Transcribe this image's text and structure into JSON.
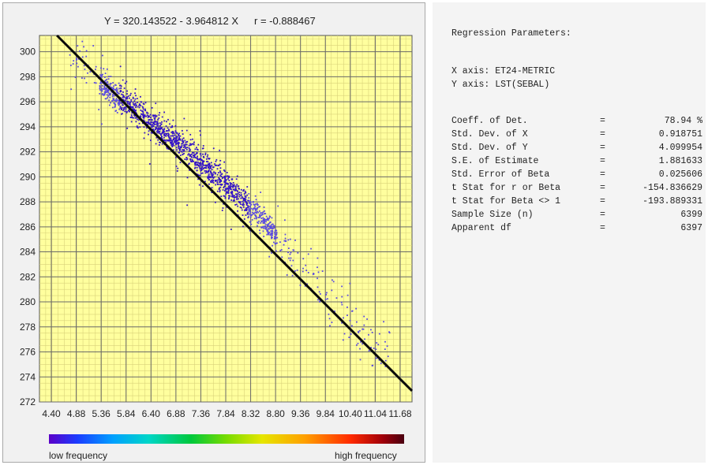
{
  "chart_data": {
    "type": "scatter",
    "title": "Y = 320.143522 - 3.964812 X",
    "correlation_label": "r = -0.888467",
    "xlim": [
      4.4,
      11.92
    ],
    "ylim": [
      272,
      301.3
    ],
    "x_ticks": [
      "4.40",
      "4.88",
      "5.36",
      "5.84",
      "6.40",
      "6.88",
      "7.36",
      "7.84",
      "8.32",
      "8.80",
      "9.36",
      "9.84",
      "10.40",
      "11.04",
      "11.68"
    ],
    "y_ticks": [
      272,
      274,
      276,
      278,
      280,
      282,
      284,
      286,
      288,
      290,
      292,
      294,
      296,
      298,
      300
    ],
    "grid": true,
    "regression": {
      "intercept": 320.143522,
      "slope": -3.964812
    },
    "points_description_values": [
      {
        "x": 5.3,
        "y": 299.5
      },
      {
        "x": 5.7,
        "y": 297.4
      },
      {
        "x": 6.0,
        "y": 296.3
      },
      {
        "x": 6.4,
        "y": 295.2
      },
      {
        "x": 6.9,
        "y": 293.6
      },
      {
        "x": 7.3,
        "y": 292.4
      },
      {
        "x": 7.7,
        "y": 291.0
      },
      {
        "x": 8.1,
        "y": 289.6
      },
      {
        "x": 8.5,
        "y": 288.1
      },
      {
        "x": 8.9,
        "y": 286.5
      },
      {
        "x": 9.4,
        "y": 284.2
      },
      {
        "x": 9.9,
        "y": 281.8
      },
      {
        "x": 10.5,
        "y": 279.3
      },
      {
        "x": 11.1,
        "y": 276.6
      }
    ],
    "colorbar": {
      "low_label": "low frequency",
      "high_label": "high frequency"
    }
  },
  "stats_panel": {
    "heading": "Regression Parameters:",
    "x_axis": "X axis: ET24-METRIC",
    "y_axis": "Y axis: LST(SEBAL)",
    "rows": [
      {
        "label": "Coeff. of Det.",
        "value": "78.94 %"
      },
      {
        "label": "Std. Dev. of X",
        "value": "0.918751"
      },
      {
        "label": "Std. Dev. of Y",
        "value": "4.099954"
      },
      {
        "label": "S.E. of Estimate",
        "value": "1.881633"
      },
      {
        "label": "Std. Error of Beta",
        "value": "0.025606"
      },
      {
        "label": "t Stat for r or Beta",
        "value": "-154.836629"
      },
      {
        "label": "t Stat for Beta <> 1",
        "value": "-193.889331"
      },
      {
        "label": "Sample Size (n)",
        "value": "6399"
      },
      {
        "label": "Apparent df",
        "value": "6397"
      }
    ],
    "eq_sign": "="
  },
  "colors": {
    "plot_bg": "#ffff9e",
    "grid": "#6a6a6a",
    "points": "#3a10d8",
    "line": "#0a0a0a"
  }
}
